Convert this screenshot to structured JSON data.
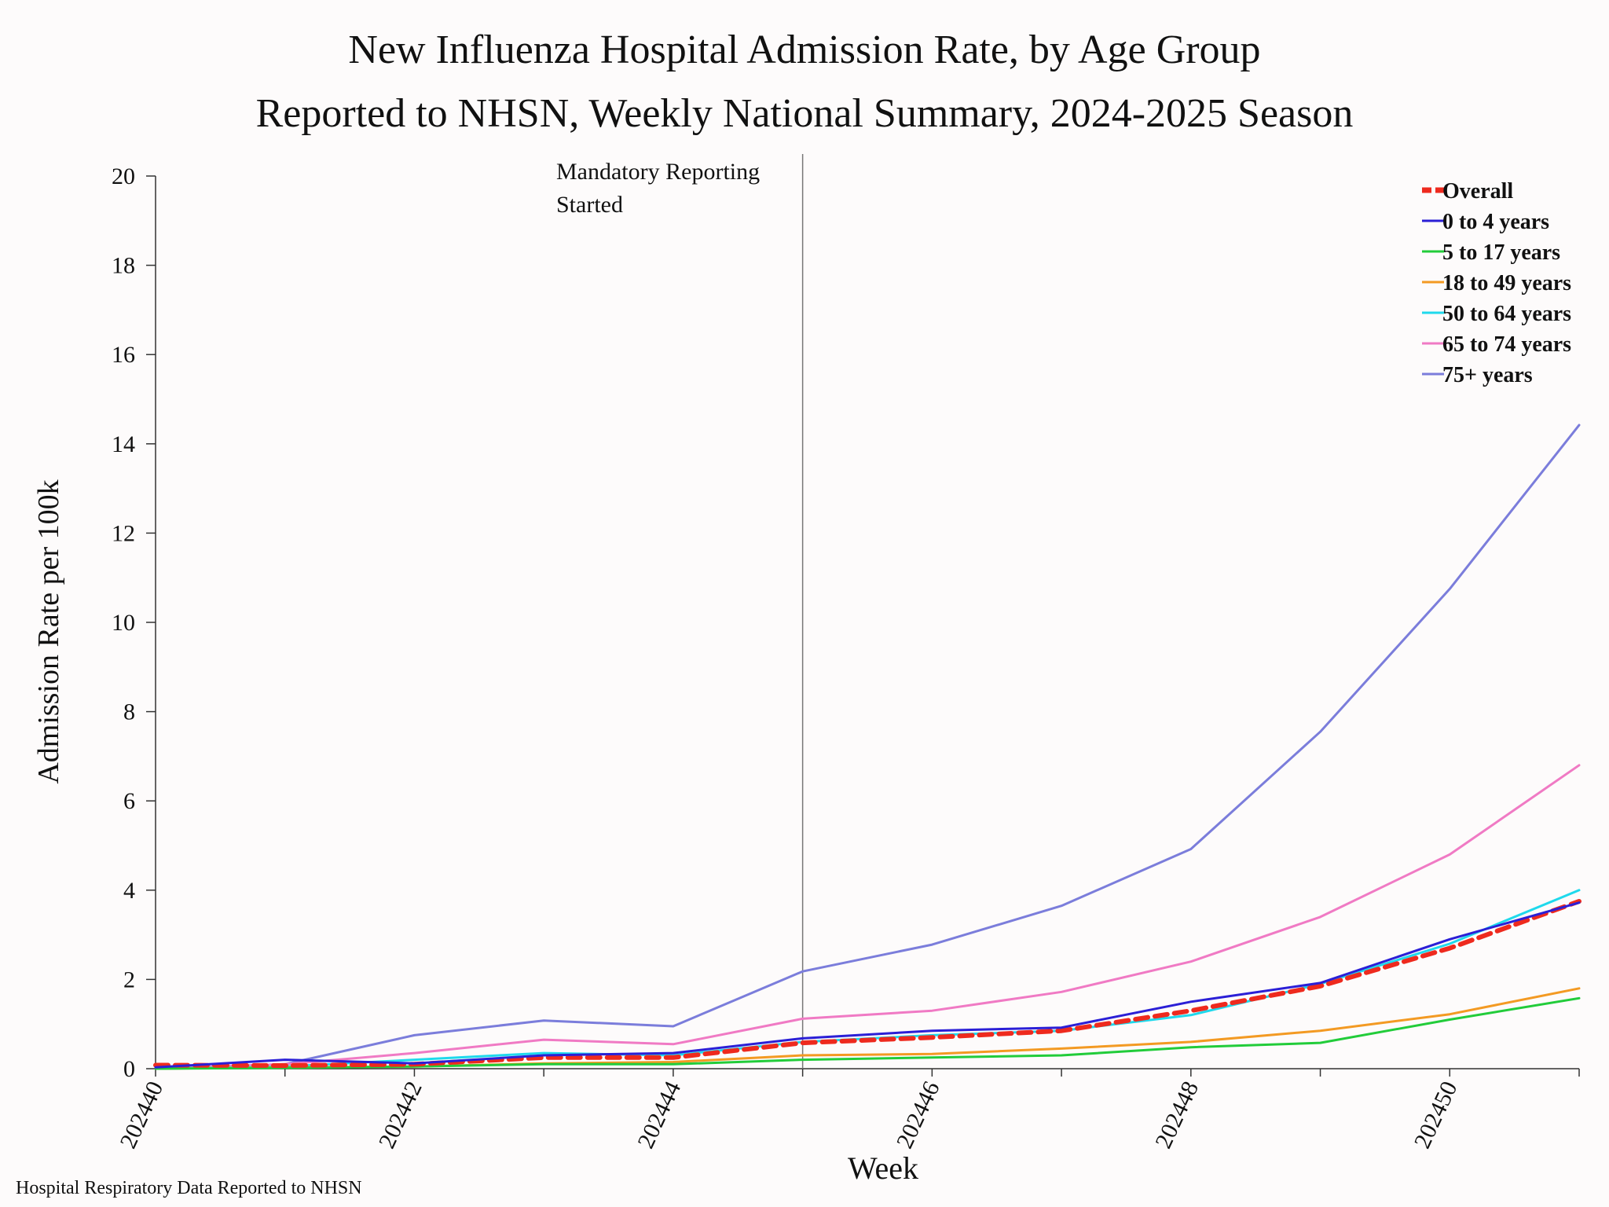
{
  "chart_data": {
    "type": "line",
    "title": "New Influenza Hospital Admission Rate, by Age Group",
    "subtitle": "Reported to NHSN, Weekly National Summary, 2024-2025 Season",
    "xlabel": "Week",
    "ylabel": "Admission Rate per 100k",
    "x": [
      "202440",
      "202441",
      "202442",
      "202443",
      "202444",
      "202445",
      "202446",
      "202447",
      "202448",
      "202449",
      "202450",
      "202451"
    ],
    "x_tick_labels": [
      "202440",
      "202442",
      "202444",
      "202446",
      "202448",
      "202450"
    ],
    "ylim": [
      0,
      20
    ],
    "y_ticks": [
      0,
      2,
      4,
      6,
      8,
      10,
      12,
      14,
      16,
      18,
      20
    ],
    "grid": false,
    "legend_position": "top-right",
    "annotation": {
      "x": "202445",
      "text_lines": [
        "Mandatory Reporting",
        "Started"
      ]
    },
    "source_note": "Hospital Respiratory Data Reported to NHSN",
    "series": [
      {
        "name": "Overall",
        "color": "#ee2a1e",
        "dashed": true,
        "values": [
          0.08,
          0.07,
          0.1,
          0.25,
          0.25,
          0.58,
          0.7,
          0.85,
          1.3,
          1.85,
          2.7,
          3.75
        ]
      },
      {
        "name": "0 to 4 years",
        "color": "#2b1fd6",
        "dashed": false,
        "values": [
          0.03,
          0.2,
          0.12,
          0.3,
          0.35,
          0.68,
          0.85,
          0.92,
          1.5,
          1.92,
          2.9,
          3.72
        ]
      },
      {
        "name": "5 to 17 years",
        "color": "#22cc3a",
        "dashed": false,
        "values": [
          0.0,
          0.02,
          0.05,
          0.1,
          0.1,
          0.2,
          0.25,
          0.3,
          0.48,
          0.58,
          1.1,
          1.58
        ]
      },
      {
        "name": "18 to 49 years",
        "color": "#f39a23",
        "dashed": false,
        "values": [
          0.0,
          0.03,
          0.05,
          0.12,
          0.15,
          0.3,
          0.33,
          0.45,
          0.6,
          0.85,
          1.22,
          1.8
        ]
      },
      {
        "name": "50 to 64 years",
        "color": "#1fd9ec",
        "dashed": false,
        "values": [
          0.0,
          0.05,
          0.2,
          0.35,
          0.3,
          0.6,
          0.75,
          0.85,
          1.2,
          1.9,
          2.8,
          4.0
        ]
      },
      {
        "name": "65 to 74 years",
        "color": "#f07ac4",
        "dashed": false,
        "values": [
          0.0,
          0.1,
          0.35,
          0.65,
          0.55,
          1.12,
          1.3,
          1.72,
          2.4,
          3.4,
          4.8,
          6.8
        ]
      },
      {
        "name": "75+ years",
        "color": "#7b7ddb",
        "dashed": false,
        "values": [
          0.0,
          0.1,
          0.75,
          1.08,
          0.95,
          2.18,
          2.78,
          3.65,
          4.92,
          7.55,
          10.75,
          14.42
        ]
      }
    ]
  }
}
